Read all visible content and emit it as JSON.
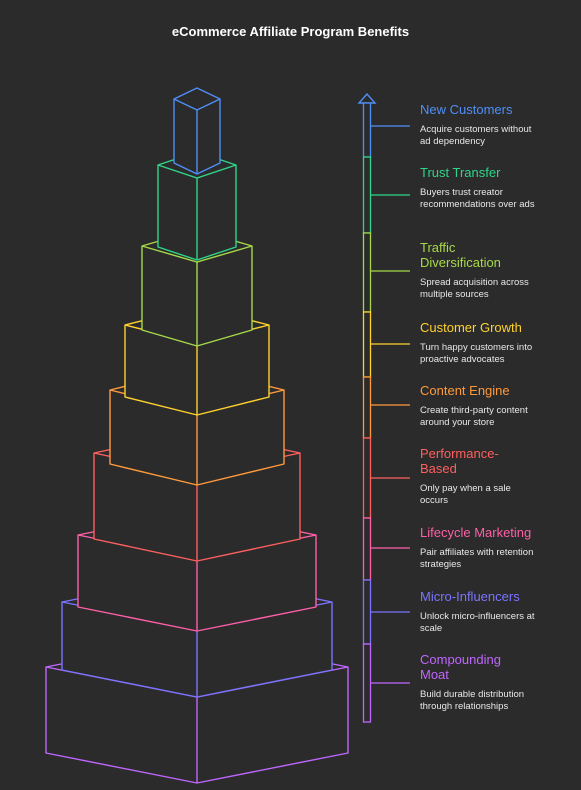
{
  "title": "eCommerce Affiliate Program Benefits",
  "levels": [
    {
      "title": "New Customers",
      "desc": "Acquire customers without ad dependency",
      "color": "#4f8ff7"
    },
    {
      "title": "Trust Transfer",
      "desc": "Buyers trust creator recommendations over ads",
      "color": "#2fd68a"
    },
    {
      "title": "Traffic Diversification",
      "desc": "Spread acquisition across multiple sources",
      "color": "#a6d94a"
    },
    {
      "title": "Customer Growth",
      "desc": "Turn happy customers into proactive advocates",
      "color": "#ffd22e"
    },
    {
      "title": "Content Engine",
      "desc": "Create third-party content around your store",
      "color": "#ff9a3c"
    },
    {
      "title": "Performance-Based",
      "desc": "Only pay when a sale occurs",
      "color": "#ff5f5f"
    },
    {
      "title": "Lifecycle Marketing",
      "desc": "Pair affiliates with retention strategies",
      "color": "#ff5fa8"
    },
    {
      "title": "Micro-Influencers",
      "desc": "Unlock micro-influencers at scale",
      "color": "#7a74ff"
    },
    {
      "title": "Compounding Moat",
      "desc": "Build durable distribution through relationships",
      "color": "#c066ff"
    }
  ]
}
